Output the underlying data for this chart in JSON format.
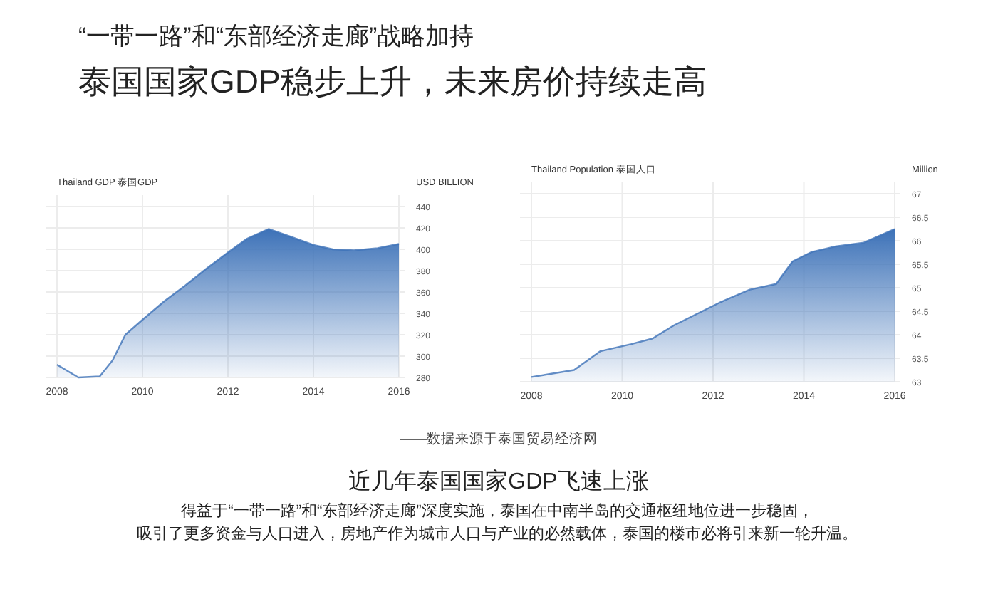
{
  "chart_data": [
    {
      "type": "other",
      "title": "泰国国家GDP稳步上升，未来房价持续走高",
      "subtitle": "“一带一路”和“东部经济走廊”战略加持"
    },
    {
      "type": "area",
      "title": "Thailand GDP  泰国GDP",
      "ylabel": "USD BILLION",
      "grid": true,
      "xlim": [
        2008,
        2016
      ],
      "xticks": [
        2008,
        2010,
        2012,
        2014,
        2016
      ],
      "ylim": [
        280,
        440
      ],
      "yticks": [
        280,
        300,
        320,
        340,
        360,
        380,
        400,
        420,
        440
      ],
      "series": [
        {
          "color": "#3d72b8",
          "x": [
            2008,
            2008.5,
            2009,
            2009.3,
            2009.6,
            2010,
            2010.5,
            2011,
            2011.5,
            2012,
            2012.45,
            2012.95,
            2013.45,
            2014,
            2014.45,
            2014.95,
            2015.5,
            2016
          ],
          "values": [
            292,
            280,
            281,
            296,
            320,
            334,
            351,
            366,
            382,
            397,
            410,
            419,
            412,
            404,
            400,
            399,
            401,
            405
          ]
        }
      ]
    },
    {
      "type": "area",
      "title": "Thailand Population  泰国人口",
      "ylabel": "Million",
      "grid": true,
      "xlim": [
        2008,
        2016
      ],
      "xticks": [
        2008,
        2010,
        2012,
        2014,
        2016
      ],
      "ylim": [
        63,
        67
      ],
      "yticks": [
        63,
        63.5,
        64,
        64.5,
        65,
        65.5,
        66,
        66.5,
        67
      ],
      "series": [
        {
          "color": "#3d72b8",
          "x": [
            2008,
            2008.94,
            2009.52,
            2010.2,
            2010.67,
            2011.14,
            2012.18,
            2012.81,
            2013.39,
            2013.75,
            2014.17,
            2014.7,
            2015.32,
            2016
          ],
          "values": [
            63.1,
            63.25,
            63.65,
            63.8,
            63.92,
            64.2,
            64.7,
            64.96,
            65.08,
            65.56,
            65.76,
            65.88,
            65.96,
            66.25
          ]
        }
      ]
    },
    {
      "type": "other",
      "title": "近几年泰国国家GDP飞速上涨",
      "annotations": [
        "——数据来源于泰国贸易经济网",
        "得益于“一带一路”和“东部经济走廊”深度实施，泰国在中南半岛的交通枢纽地位进一步稳固，",
        "吸引了更多资金与人口进入，房地产作为城市人口与产业的必然载体，泰国的楼市必将引来新一轮升温。"
      ]
    }
  ]
}
